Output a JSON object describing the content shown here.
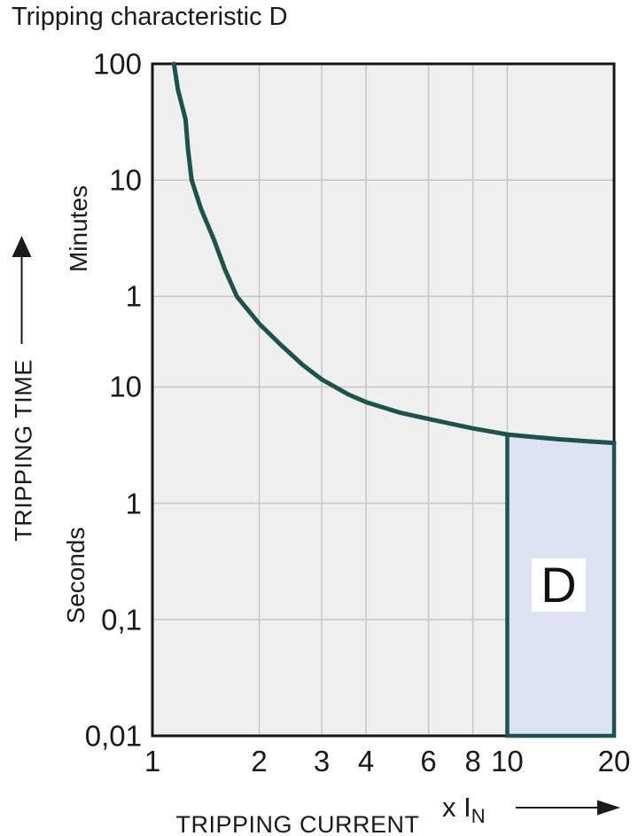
{
  "page": {
    "title": "Tripping characteristic D"
  },
  "chart_data": {
    "type": "line",
    "title": "Tripping characteristic D",
    "grid": true,
    "legend": "none",
    "x_axis": {
      "label": "TRIPPING CURRENT",
      "unit_prefix": "x I",
      "unit_subscript": "N",
      "scale": "log",
      "range": [
        1,
        20
      ],
      "ticks": [
        1,
        2,
        3,
        4,
        6,
        8,
        10,
        20
      ],
      "gridlines": [
        2,
        3,
        4,
        6,
        8,
        10
      ]
    },
    "y_axis": {
      "label": "TRIPPING TIME",
      "scale": "log",
      "units": [
        "Minutes",
        "Seconds"
      ],
      "range_seconds": [
        0.01,
        6000
      ],
      "ticks": [
        {
          "label": "100",
          "seconds": 6000,
          "unit": "minutes"
        },
        {
          "label": "10",
          "seconds": 600,
          "unit": "minutes"
        },
        {
          "label": "1",
          "seconds": 60,
          "unit": "minutes"
        },
        {
          "label": "10",
          "seconds": 10,
          "unit": "seconds"
        },
        {
          "label": "1",
          "seconds": 1,
          "unit": "seconds"
        },
        {
          "label": "0,1",
          "seconds": 0.1,
          "unit": "seconds"
        },
        {
          "label": "0,01",
          "seconds": 0.01,
          "unit": "seconds"
        }
      ],
      "gridlines_seconds": [
        600,
        60,
        10,
        1,
        0.1
      ]
    },
    "series": [
      {
        "name": "D tripping curve",
        "points_x_time_seconds": [
          [
            1.15,
            6000
          ],
          [
            1.18,
            3600
          ],
          [
            1.24,
            2000
          ],
          [
            1.26,
            1100
          ],
          [
            1.29,
            600
          ],
          [
            1.37,
            340
          ],
          [
            1.49,
            185
          ],
          [
            1.6,
            103
          ],
          [
            1.73,
            60
          ],
          [
            2.0,
            35
          ],
          [
            2.3,
            23
          ],
          [
            2.65,
            15.5
          ],
          [
            3.0,
            11.6
          ],
          [
            3.57,
            8.6
          ],
          [
            4.0,
            7.4
          ],
          [
            5.0,
            6.0
          ],
          [
            6.0,
            5.3
          ],
          [
            7.0,
            4.8
          ],
          [
            8.0,
            4.4
          ],
          [
            10.0,
            3.9
          ],
          [
            12.0,
            3.7
          ],
          [
            14.0,
            3.55
          ],
          [
            17.0,
            3.4
          ],
          [
            20.0,
            3.3
          ]
        ]
      }
    ],
    "region": {
      "label": "D",
      "x_start": 10,
      "x_end": 20,
      "bottom_seconds": 0.01,
      "top_follows_curve": true
    },
    "colors": {
      "curve": "#1e524c",
      "region_fill": "#dde3f2",
      "region_border": "#1e524c",
      "plot_background": "#efeff0",
      "gridline": "#c6c6c9",
      "plot_border": "#151515",
      "text": "#1a1a1a"
    }
  }
}
